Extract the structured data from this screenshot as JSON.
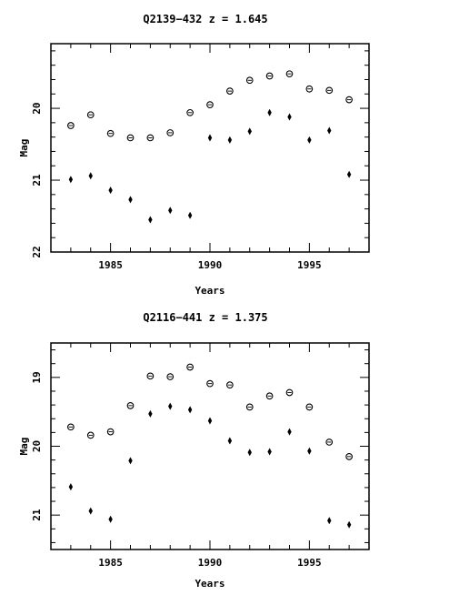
{
  "chart_data": [
    {
      "type": "scatter",
      "title": "Q2139−432  z = 1.645",
      "xlabel": "Years",
      "ylabel": "Mag",
      "xlim": [
        1982.0,
        1998.0
      ],
      "ylim": [
        22.0,
        19.1
      ],
      "y_inverted": true,
      "xticks": [
        1985,
        1990,
        1995
      ],
      "yticks": [
        20,
        21,
        22
      ],
      "grid": false,
      "series": [
        {
          "marker": "circle-dot",
          "x": [
            1983,
            1984,
            1985,
            1986,
            1987,
            1988,
            1989,
            1990,
            1991,
            1992,
            1993,
            1994,
            1995,
            1996,
            1997
          ],
          "y": [
            20.24,
            20.09,
            20.35,
            20.41,
            20.41,
            20.34,
            20.06,
            19.95,
            19.76,
            19.61,
            19.55,
            19.52,
            19.73,
            19.75,
            19.88
          ]
        },
        {
          "marker": "diamond",
          "x": [
            1983,
            1984,
            1985,
            1986,
            1987,
            1988,
            1989,
            1990,
            1991,
            1992,
            1993,
            1994,
            1995,
            1996,
            1997
          ],
          "y": [
            20.99,
            20.94,
            21.14,
            21.27,
            21.55,
            21.42,
            21.49,
            20.41,
            20.44,
            20.32,
            20.06,
            20.12,
            20.44,
            20.31,
            20.92
          ]
        }
      ]
    },
    {
      "type": "scatter",
      "title": "Q2116−441  z = 1.375",
      "xlabel": "Years",
      "ylabel": "Mag",
      "xlim": [
        1982.0,
        1998.0
      ],
      "ylim": [
        21.5,
        18.5
      ],
      "y_inverted": true,
      "xticks": [
        1985,
        1990,
        1995
      ],
      "yticks": [
        19,
        20,
        21
      ],
      "grid": false,
      "series": [
        {
          "marker": "circle-dot",
          "x": [
            1983,
            1984,
            1985,
            1986,
            1987,
            1988,
            1989,
            1990,
            1991,
            1992,
            1993,
            1994,
            1995,
            1996,
            1997
          ],
          "y": [
            19.72,
            19.84,
            19.79,
            19.41,
            18.98,
            18.99,
            18.85,
            19.09,
            19.11,
            19.43,
            19.27,
            19.22,
            19.43,
            19.94,
            20.15
          ]
        },
        {
          "marker": "diamond",
          "x": [
            1983,
            1984,
            1985,
            1986,
            1987,
            1988,
            1989,
            1990,
            1991,
            1992,
            1993,
            1994,
            1995,
            1996,
            1997
          ],
          "y": [
            20.59,
            20.94,
            21.06,
            20.21,
            19.53,
            19.42,
            19.47,
            19.63,
            19.92,
            20.09,
            20.08,
            19.79,
            20.07,
            21.08,
            21.14
          ]
        }
      ]
    }
  ]
}
